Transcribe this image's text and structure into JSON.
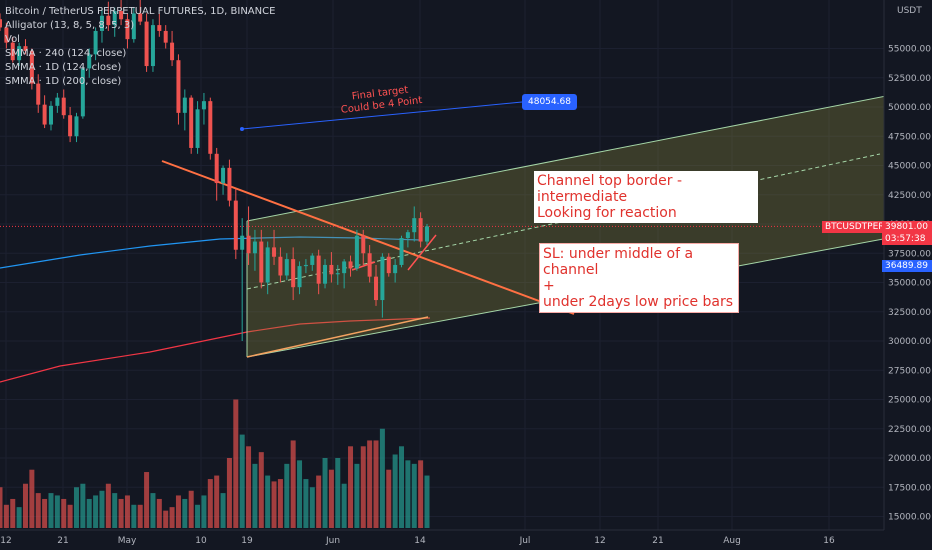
{
  "legend": {
    "title": "Bitcoin / TetherUS PERPETUAL FUTURES, 1D, BINANCE",
    "lines": [
      "Alligator (13, 8, 5, 8, 5, 3)",
      "Vol",
      "SMMA · 240 (124, close)",
      "SMMA · 1D (124, close)",
      "SMMA · 1D (200, close)"
    ]
  },
  "axis": {
    "currency": "USDT"
  },
  "annotations": {
    "final_target_line1": "Final target",
    "final_target_line2": "Could be 4 Point",
    "target_price": "48054.68",
    "channel_note_line1": "Channel top border - intermediate",
    "channel_note_line2": "Looking for reaction",
    "sl_line1": "SL: under middle of a channel",
    "sl_line2": "+",
    "sl_line3": "under 2days low price bars"
  },
  "price_tags": {
    "symbol": "BTCUSDTPERP",
    "last_price": "39801.00",
    "countdown": "03:57:38",
    "level_price": "36489.89"
  },
  "colors": {
    "background": "#131722",
    "up": "#26a69a",
    "down": "#ef5350",
    "trendline": "#ff7043",
    "channel": "#a5d6a7",
    "target_line": "#2962ff",
    "smma_red": "#f23645",
    "smma_blue": "#2196f3",
    "smma_green": "#4caf50"
  },
  "chart_data": {
    "type": "candlestick",
    "y_ticks": [
      55000,
      52500,
      50000,
      47500,
      45000,
      42500,
      40000,
      37500,
      35000,
      32500,
      30000,
      27500,
      25000,
      22500,
      20000,
      17500,
      15000
    ],
    "y_labels": [
      "55000.00",
      "52500.00",
      "50000.00",
      "47500.00",
      "45000.00",
      "42500.00",
      "40000.00",
      "37500.00",
      "35000.00",
      "32500.00",
      "30000.00",
      "27500.00",
      "25000.00",
      "22500.00",
      "20000.00",
      "17500.00",
      "15000.00"
    ],
    "x_labels": [
      "12",
      "21",
      "May",
      "10",
      "19",
      "Jun",
      "14",
      "Jul",
      "12",
      "21",
      "Aug",
      "16"
    ],
    "candles": [
      [
        57500,
        58000,
        56500,
        56800
      ],
      [
        56800,
        57200,
        55000,
        55500
      ],
      [
        55500,
        56000,
        53800,
        54000
      ],
      [
        54000,
        55500,
        53500,
        55200
      ],
      [
        55200,
        55800,
        54500,
        54800
      ],
      [
        54800,
        55000,
        51500,
        52000
      ],
      [
        52000,
        52800,
        49500,
        50200
      ],
      [
        50200,
        51000,
        48200,
        48500
      ],
      [
        48500,
        50500,
        48000,
        50100
      ],
      [
        50100,
        51200,
        49500,
        50800
      ],
      [
        50800,
        51500,
        49000,
        49300
      ],
      [
        49300,
        50000,
        47000,
        47500
      ],
      [
        47500,
        49500,
        47000,
        49200
      ],
      [
        49200,
        53500,
        49000,
        53300
      ],
      [
        53300,
        55000,
        52500,
        54500
      ],
      [
        54500,
        56800,
        54000,
        56500
      ],
      [
        56500,
        58500,
        55500,
        57800
      ],
      [
        57800,
        59000,
        56500,
        57000
      ],
      [
        57000,
        58500,
        56000,
        58200
      ],
      [
        58200,
        59500,
        57000,
        57500
      ],
      [
        57500,
        58000,
        55000,
        55800
      ],
      [
        55800,
        58500,
        55500,
        58000
      ],
      [
        58000,
        59500,
        57000,
        57300
      ],
      [
        57300,
        58000,
        53000,
        53500
      ],
      [
        53500,
        57500,
        53000,
        57000
      ],
      [
        57000,
        58000,
        56000,
        56500
      ],
      [
        56500,
        57000,
        55000,
        55500
      ],
      [
        55500,
        56500,
        53500,
        54000
      ],
      [
        54000,
        54500,
        48500,
        49500
      ],
      [
        49500,
        51500,
        48000,
        50800
      ],
      [
        50800,
        51000,
        46000,
        46500
      ],
      [
        46500,
        50500,
        46000,
        49800
      ],
      [
        49800,
        51200,
        48500,
        50500
      ],
      [
        50500,
        50800,
        45500,
        46000
      ],
      [
        46000,
        46500,
        42000,
        43500
      ],
      [
        43500,
        45000,
        42500,
        44800
      ],
      [
        44800,
        45500,
        41500,
        42000
      ],
      [
        42000,
        43000,
        37000,
        37800
      ],
      [
        37800,
        40500,
        30000,
        39000
      ],
      [
        39000,
        41500,
        36500,
        37500
      ],
      [
        37500,
        39500,
        36000,
        38500
      ],
      [
        38500,
        39500,
        34500,
        35000
      ],
      [
        35000,
        38500,
        34000,
        38000
      ],
      [
        38000,
        39500,
        36500,
        37200
      ],
      [
        37200,
        38000,
        35000,
        35600
      ],
      [
        35600,
        37500,
        35200,
        37000
      ],
      [
        37000,
        38000,
        33500,
        34600
      ],
      [
        34600,
        36800,
        34000,
        36400
      ],
      [
        36400,
        37000,
        35800,
        36500
      ],
      [
        36500,
        37500,
        36000,
        37300
      ],
      [
        37300,
        37800,
        34000,
        34900
      ],
      [
        34900,
        37000,
        34500,
        36500
      ],
      [
        36500,
        37600,
        35000,
        35700
      ],
      [
        35700,
        36500,
        34800,
        35800
      ],
      [
        35800,
        37000,
        34500,
        36800
      ],
      [
        36800,
        37300,
        35500,
        36200
      ],
      [
        36200,
        39500,
        36000,
        39000
      ],
      [
        39000,
        39500,
        36500,
        37500
      ],
      [
        37500,
        38200,
        35000,
        35500
      ],
      [
        35500,
        36500,
        33000,
        33500
      ],
      [
        33500,
        37500,
        32000,
        37200
      ],
      [
        37200,
        37500,
        35500,
        35800
      ],
      [
        35800,
        37000,
        35000,
        36500
      ],
      [
        36500,
        39000,
        36300,
        38800
      ],
      [
        38800,
        39500,
        38000,
        39300
      ],
      [
        39300,
        41500,
        38500,
        40500
      ],
      [
        40500,
        41000,
        38000,
        38500
      ],
      [
        38500,
        40000,
        38200,
        39801
      ]
    ],
    "volumes": [
      17500,
      16000,
      16500,
      15800,
      17800,
      19000,
      17000,
      16500,
      17000,
      16800,
      16500,
      16000,
      17500,
      17800,
      16500,
      16800,
      17200,
      17800,
      17000,
      16500,
      16800,
      16000,
      16000,
      18800,
      17000,
      16500,
      15500,
      15800,
      16800,
      16500,
      17200,
      16000,
      16800,
      18200,
      18500,
      17000,
      20000,
      25000,
      22000,
      21000,
      19500,
      20500,
      18500,
      18000,
      18200,
      19500,
      21500,
      19800,
      18200,
      17500,
      18500,
      20000,
      19000,
      20000,
      17800,
      21000,
      19500,
      21000,
      21500,
      21500,
      22500,
      19000,
      20300,
      21000,
      19800,
      19500,
      19800,
      18500
    ]
  }
}
